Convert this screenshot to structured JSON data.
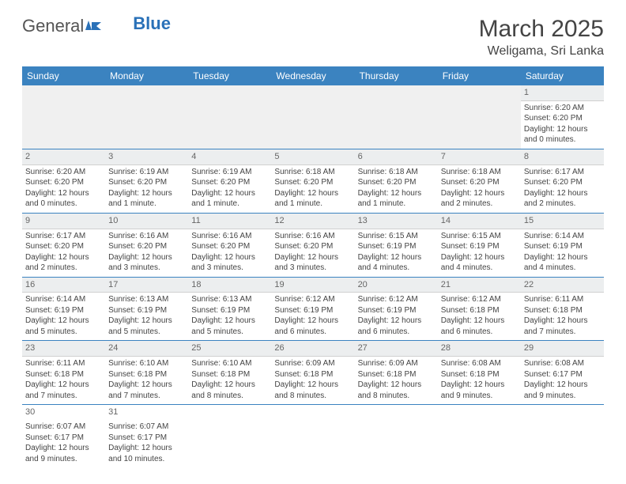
{
  "logo": {
    "general": "General",
    "blue": "Blue"
  },
  "title": "March 2025",
  "location": "Weligama, Sri Lanka",
  "colors": {
    "header_bg": "#3b83c0",
    "header_text": "#ffffff",
    "border": "#3b83c0",
    "daynum_bg": "#eceeef"
  },
  "weekdays": [
    "Sunday",
    "Monday",
    "Tuesday",
    "Wednesday",
    "Thursday",
    "Friday",
    "Saturday"
  ],
  "rows": [
    [
      null,
      null,
      null,
      null,
      null,
      null,
      {
        "n": "1",
        "sr": "Sunrise: 6:20 AM",
        "ss": "Sunset: 6:20 PM",
        "d1": "Daylight: 12 hours",
        "d2": "and 0 minutes."
      }
    ],
    [
      {
        "n": "2",
        "sr": "Sunrise: 6:20 AM",
        "ss": "Sunset: 6:20 PM",
        "d1": "Daylight: 12 hours",
        "d2": "and 0 minutes."
      },
      {
        "n": "3",
        "sr": "Sunrise: 6:19 AM",
        "ss": "Sunset: 6:20 PM",
        "d1": "Daylight: 12 hours",
        "d2": "and 1 minute."
      },
      {
        "n": "4",
        "sr": "Sunrise: 6:19 AM",
        "ss": "Sunset: 6:20 PM",
        "d1": "Daylight: 12 hours",
        "d2": "and 1 minute."
      },
      {
        "n": "5",
        "sr": "Sunrise: 6:18 AM",
        "ss": "Sunset: 6:20 PM",
        "d1": "Daylight: 12 hours",
        "d2": "and 1 minute."
      },
      {
        "n": "6",
        "sr": "Sunrise: 6:18 AM",
        "ss": "Sunset: 6:20 PM",
        "d1": "Daylight: 12 hours",
        "d2": "and 1 minute."
      },
      {
        "n": "7",
        "sr": "Sunrise: 6:18 AM",
        "ss": "Sunset: 6:20 PM",
        "d1": "Daylight: 12 hours",
        "d2": "and 2 minutes."
      },
      {
        "n": "8",
        "sr": "Sunrise: 6:17 AM",
        "ss": "Sunset: 6:20 PM",
        "d1": "Daylight: 12 hours",
        "d2": "and 2 minutes."
      }
    ],
    [
      {
        "n": "9",
        "sr": "Sunrise: 6:17 AM",
        "ss": "Sunset: 6:20 PM",
        "d1": "Daylight: 12 hours",
        "d2": "and 2 minutes."
      },
      {
        "n": "10",
        "sr": "Sunrise: 6:16 AM",
        "ss": "Sunset: 6:20 PM",
        "d1": "Daylight: 12 hours",
        "d2": "and 3 minutes."
      },
      {
        "n": "11",
        "sr": "Sunrise: 6:16 AM",
        "ss": "Sunset: 6:20 PM",
        "d1": "Daylight: 12 hours",
        "d2": "and 3 minutes."
      },
      {
        "n": "12",
        "sr": "Sunrise: 6:16 AM",
        "ss": "Sunset: 6:20 PM",
        "d1": "Daylight: 12 hours",
        "d2": "and 3 minutes."
      },
      {
        "n": "13",
        "sr": "Sunrise: 6:15 AM",
        "ss": "Sunset: 6:19 PM",
        "d1": "Daylight: 12 hours",
        "d2": "and 4 minutes."
      },
      {
        "n": "14",
        "sr": "Sunrise: 6:15 AM",
        "ss": "Sunset: 6:19 PM",
        "d1": "Daylight: 12 hours",
        "d2": "and 4 minutes."
      },
      {
        "n": "15",
        "sr": "Sunrise: 6:14 AM",
        "ss": "Sunset: 6:19 PM",
        "d1": "Daylight: 12 hours",
        "d2": "and 4 minutes."
      }
    ],
    [
      {
        "n": "16",
        "sr": "Sunrise: 6:14 AM",
        "ss": "Sunset: 6:19 PM",
        "d1": "Daylight: 12 hours",
        "d2": "and 5 minutes."
      },
      {
        "n": "17",
        "sr": "Sunrise: 6:13 AM",
        "ss": "Sunset: 6:19 PM",
        "d1": "Daylight: 12 hours",
        "d2": "and 5 minutes."
      },
      {
        "n": "18",
        "sr": "Sunrise: 6:13 AM",
        "ss": "Sunset: 6:19 PM",
        "d1": "Daylight: 12 hours",
        "d2": "and 5 minutes."
      },
      {
        "n": "19",
        "sr": "Sunrise: 6:12 AM",
        "ss": "Sunset: 6:19 PM",
        "d1": "Daylight: 12 hours",
        "d2": "and 6 minutes."
      },
      {
        "n": "20",
        "sr": "Sunrise: 6:12 AM",
        "ss": "Sunset: 6:19 PM",
        "d1": "Daylight: 12 hours",
        "d2": "and 6 minutes."
      },
      {
        "n": "21",
        "sr": "Sunrise: 6:12 AM",
        "ss": "Sunset: 6:18 PM",
        "d1": "Daylight: 12 hours",
        "d2": "and 6 minutes."
      },
      {
        "n": "22",
        "sr": "Sunrise: 6:11 AM",
        "ss": "Sunset: 6:18 PM",
        "d1": "Daylight: 12 hours",
        "d2": "and 7 minutes."
      }
    ],
    [
      {
        "n": "23",
        "sr": "Sunrise: 6:11 AM",
        "ss": "Sunset: 6:18 PM",
        "d1": "Daylight: 12 hours",
        "d2": "and 7 minutes."
      },
      {
        "n": "24",
        "sr": "Sunrise: 6:10 AM",
        "ss": "Sunset: 6:18 PM",
        "d1": "Daylight: 12 hours",
        "d2": "and 7 minutes."
      },
      {
        "n": "25",
        "sr": "Sunrise: 6:10 AM",
        "ss": "Sunset: 6:18 PM",
        "d1": "Daylight: 12 hours",
        "d2": "and 8 minutes."
      },
      {
        "n": "26",
        "sr": "Sunrise: 6:09 AM",
        "ss": "Sunset: 6:18 PM",
        "d1": "Daylight: 12 hours",
        "d2": "and 8 minutes."
      },
      {
        "n": "27",
        "sr": "Sunrise: 6:09 AM",
        "ss": "Sunset: 6:18 PM",
        "d1": "Daylight: 12 hours",
        "d2": "and 8 minutes."
      },
      {
        "n": "28",
        "sr": "Sunrise: 6:08 AM",
        "ss": "Sunset: 6:18 PM",
        "d1": "Daylight: 12 hours",
        "d2": "and 9 minutes."
      },
      {
        "n": "29",
        "sr": "Sunrise: 6:08 AM",
        "ss": "Sunset: 6:17 PM",
        "d1": "Daylight: 12 hours",
        "d2": "and 9 minutes."
      }
    ],
    [
      {
        "n": "30",
        "sr": "Sunrise: 6:07 AM",
        "ss": "Sunset: 6:17 PM",
        "d1": "Daylight: 12 hours",
        "d2": "and 9 minutes."
      },
      {
        "n": "31",
        "sr": "Sunrise: 6:07 AM",
        "ss": "Sunset: 6:17 PM",
        "d1": "Daylight: 12 hours",
        "d2": "and 10 minutes."
      },
      null,
      null,
      null,
      null,
      null
    ]
  ]
}
